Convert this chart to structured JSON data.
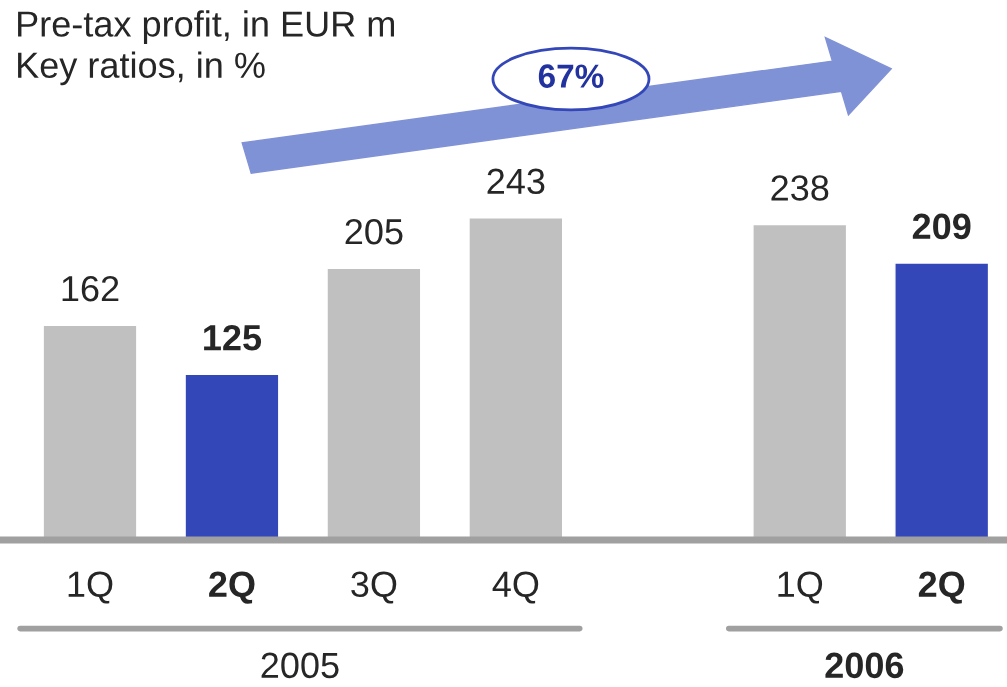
{
  "chart_data": {
    "type": "bar",
    "title": "Pre-tax profit, in EUR m",
    "subtitle": "Key ratios, in %",
    "categories": [
      "1Q",
      "2Q",
      "3Q",
      "4Q",
      null,
      "1Q",
      "2Q"
    ],
    "values": [
      162,
      125,
      205,
      243,
      null,
      238,
      209
    ],
    "colors": [
      "#c0c0c0",
      "#3447b8",
      "#c0c0c0",
      "#c0c0c0",
      "#c0c0c0",
      "#c0c0c0",
      "#3447b8"
    ],
    "data_labels": true,
    "annotations": [
      "67%",
      "2005",
      "2006"
    ]
  }
}
